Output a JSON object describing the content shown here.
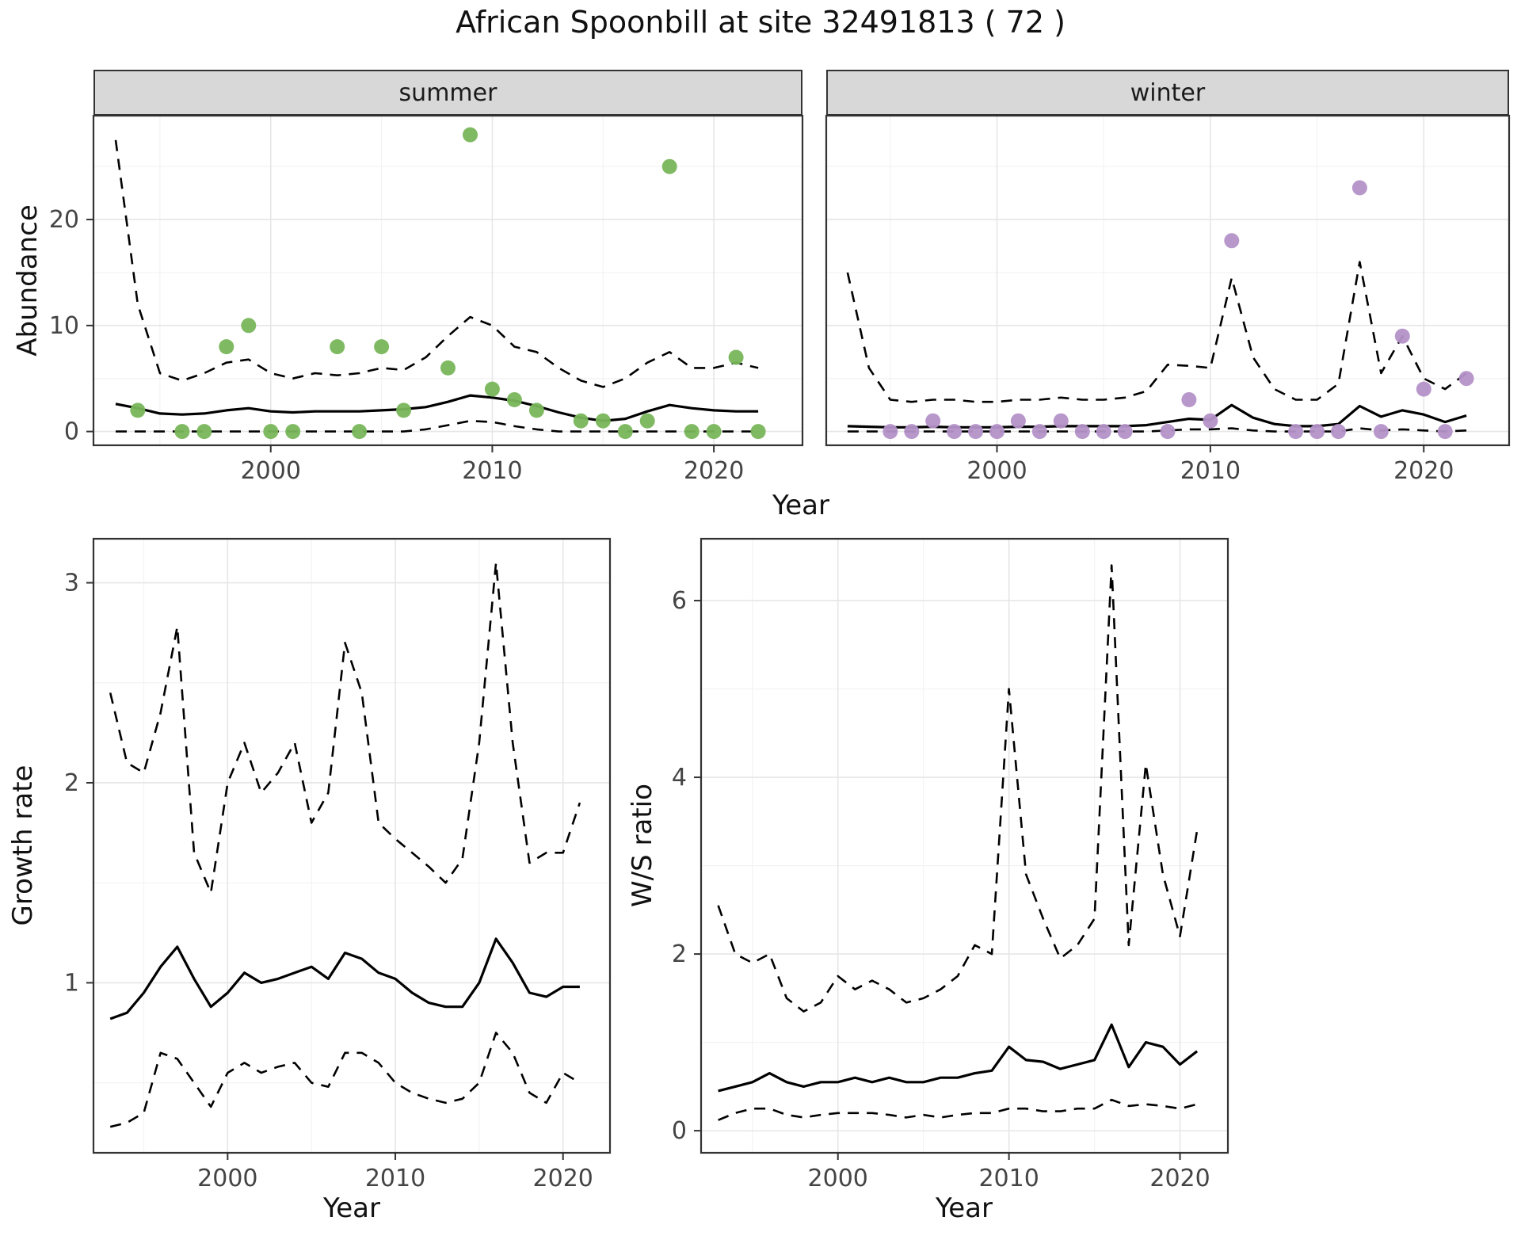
{
  "title": "African Spoonbill at site 32491813 ( 72 )",
  "facets": {
    "summer": "summer",
    "winter": "winter"
  },
  "axis_titles": {
    "abundance": "Abundance",
    "year": "Year",
    "growth": "Growth rate",
    "ws": "W/S ratio"
  },
  "colors": {
    "summer_point": "#78b65a",
    "winter_point": "#b492c8",
    "line": "#000000",
    "strip_bg": "#d8d8d8",
    "panel_border": "#333333",
    "grid_major": "#e6e6e6",
    "grid_minor": "#f3f3f3",
    "tick_text": "#444444",
    "title_text": "#111111"
  },
  "chart_data": [
    {
      "id": "abundance-summer",
      "type": "line",
      "name": "Abundance (summer facet)",
      "facet": "summer",
      "xlabel": "Year",
      "ylabel": "Abundance",
      "xlim": [
        1992,
        2024
      ],
      "ylim": [
        -1.3,
        29.8
      ],
      "xticks": [
        2000,
        2010,
        2020
      ],
      "yticks": [
        0,
        10,
        20
      ],
      "xminor": [
        1995,
        2005,
        2015
      ],
      "yminor": [
        5,
        15,
        25
      ],
      "show_ytick_labels": true,
      "series": [
        {
          "name": "median",
          "style": "solid",
          "x": [
            1993,
            1994,
            1995,
            1996,
            1997,
            1998,
            1999,
            2000,
            2001,
            2002,
            2003,
            2004,
            2005,
            2006,
            2007,
            2008,
            2009,
            2010,
            2011,
            2012,
            2013,
            2014,
            2015,
            2016,
            2017,
            2018,
            2019,
            2020,
            2021,
            2022
          ],
          "y": [
            2.6,
            2.2,
            1.7,
            1.6,
            1.7,
            2.0,
            2.2,
            1.9,
            1.8,
            1.9,
            1.9,
            1.9,
            2.0,
            2.1,
            2.3,
            2.8,
            3.4,
            3.2,
            2.9,
            2.4,
            1.8,
            1.3,
            1.0,
            1.2,
            1.9,
            2.5,
            2.2,
            2.0,
            1.9,
            1.9
          ]
        },
        {
          "name": "upper_ci",
          "style": "dashed",
          "x": [
            1993,
            1994,
            1995,
            1996,
            1997,
            1998,
            1999,
            2000,
            2001,
            2002,
            2003,
            2004,
            2005,
            2006,
            2007,
            2008,
            2009,
            2010,
            2011,
            2012,
            2013,
            2014,
            2015,
            2016,
            2017,
            2018,
            2019,
            2020,
            2021,
            2022
          ],
          "y": [
            27.5,
            12.0,
            5.5,
            4.8,
            5.5,
            6.5,
            6.8,
            5.5,
            5.0,
            5.5,
            5.3,
            5.5,
            6.0,
            5.8,
            7.0,
            9.0,
            10.8,
            10.0,
            8.0,
            7.5,
            6.0,
            4.8,
            4.2,
            5.0,
            6.5,
            7.5,
            6.0,
            6.0,
            6.5,
            6.0
          ]
        },
        {
          "name": "lower_ci",
          "style": "dashed",
          "x": [
            1993,
            1994,
            1995,
            1996,
            1997,
            1998,
            1999,
            2000,
            2001,
            2002,
            2003,
            2004,
            2005,
            2006,
            2007,
            2008,
            2009,
            2010,
            2011,
            2012,
            2013,
            2014,
            2015,
            2016,
            2017,
            2018,
            2019,
            2020,
            2021,
            2022
          ],
          "y": [
            0,
            0,
            0,
            0,
            0,
            0,
            0,
            0,
            0,
            0,
            0,
            0,
            0,
            0,
            0.2,
            0.6,
            1.0,
            0.9,
            0.5,
            0.2,
            0,
            0,
            0,
            0,
            0,
            0,
            0,
            0,
            0,
            0
          ]
        }
      ],
      "points": {
        "name": "observed_counts_summer",
        "color_key": "summer_point",
        "x": [
          1994,
          1996,
          1997,
          1998,
          1999,
          2000,
          2001,
          2003,
          2004,
          2005,
          2006,
          2008,
          2009,
          2010,
          2011,
          2012,
          2014,
          2015,
          2016,
          2017,
          2018,
          2019,
          2020,
          2021,
          2022
        ],
        "y": [
          2,
          0,
          0,
          8,
          10,
          0,
          0,
          8,
          0,
          8,
          2,
          6,
          28,
          4,
          3,
          2,
          1,
          1,
          0,
          1,
          25,
          0,
          0,
          7,
          0
        ]
      }
    },
    {
      "id": "abundance-winter",
      "type": "line",
      "name": "Abundance (winter facet)",
      "facet": "winter",
      "xlabel": "Year",
      "ylabel": "Abundance",
      "xlim": [
        1992,
        2024
      ],
      "ylim": [
        -1.3,
        29.8
      ],
      "xticks": [
        2000,
        2010,
        2020
      ],
      "yticks": [
        0,
        10,
        20
      ],
      "xminor": [
        1995,
        2005,
        2015
      ],
      "yminor": [
        5,
        15,
        25
      ],
      "show_ytick_labels": false,
      "series": [
        {
          "name": "median",
          "style": "solid",
          "x": [
            1993,
            1994,
            1995,
            1996,
            1997,
            1998,
            1999,
            2000,
            2001,
            2002,
            2003,
            2004,
            2005,
            2006,
            2007,
            2008,
            2009,
            2010,
            2011,
            2012,
            2013,
            2014,
            2015,
            2016,
            2017,
            2018,
            2019,
            2020,
            2021,
            2022
          ],
          "y": [
            0.5,
            0.45,
            0.4,
            0.4,
            0.45,
            0.4,
            0.4,
            0.4,
            0.45,
            0.45,
            0.5,
            0.5,
            0.5,
            0.5,
            0.6,
            0.9,
            1.2,
            1.1,
            2.5,
            1.3,
            0.7,
            0.5,
            0.5,
            0.7,
            2.4,
            1.4,
            2.0,
            1.6,
            0.9,
            1.5
          ]
        },
        {
          "name": "upper_ci",
          "style": "dashed",
          "x": [
            1993,
            1994,
            1995,
            1996,
            1997,
            1998,
            1999,
            2000,
            2001,
            2002,
            2003,
            2004,
            2005,
            2006,
            2007,
            2008,
            2009,
            2010,
            2011,
            2012,
            2013,
            2014,
            2015,
            2016,
            2017,
            2018,
            2019,
            2020,
            2021,
            2022
          ],
          "y": [
            15.0,
            6.0,
            3.0,
            2.8,
            3.0,
            3.0,
            2.8,
            2.8,
            3.0,
            3.0,
            3.2,
            3.0,
            3.0,
            3.2,
            3.8,
            6.3,
            6.2,
            6.0,
            14.5,
            7.0,
            4.0,
            3.0,
            3.0,
            4.5,
            16.0,
            5.5,
            9.0,
            5.0,
            4.0,
            5.5
          ]
        },
        {
          "name": "lower_ci",
          "style": "dashed",
          "x": [
            1993,
            1994,
            1995,
            1996,
            1997,
            1998,
            1999,
            2000,
            2001,
            2002,
            2003,
            2004,
            2005,
            2006,
            2007,
            2008,
            2009,
            2010,
            2011,
            2012,
            2013,
            2014,
            2015,
            2016,
            2017,
            2018,
            2019,
            2020,
            2021,
            2022
          ],
          "y": [
            0,
            0,
            0,
            0,
            0,
            0,
            0,
            0,
            0,
            0,
            0,
            0,
            0,
            0,
            0,
            0.1,
            0.2,
            0.2,
            0.3,
            0.1,
            0,
            0,
            0,
            0,
            0.3,
            0.1,
            0.2,
            0.1,
            0,
            0.1
          ]
        }
      ],
      "points": {
        "name": "observed_counts_winter",
        "color_key": "winter_point",
        "x": [
          1995,
          1996,
          1997,
          1998,
          1999,
          2000,
          2001,
          2002,
          2003,
          2004,
          2005,
          2006,
          2008,
          2009,
          2010,
          2011,
          2014,
          2015,
          2016,
          2017,
          2018,
          2019,
          2020,
          2021,
          2022
        ],
        "y": [
          0,
          0,
          1,
          0,
          0,
          0,
          1,
          0,
          1,
          0,
          0,
          0,
          0,
          3,
          1,
          18,
          0,
          0,
          0,
          23,
          0,
          9,
          4,
          0,
          5
        ]
      }
    },
    {
      "id": "growth-rate",
      "type": "line",
      "name": "Growth rate",
      "xlabel": "Year",
      "ylabel": "Growth rate",
      "xlim": [
        1992,
        2022.8
      ],
      "ylim": [
        0.15,
        3.22
      ],
      "xticks": [
        2000,
        2010,
        2020
      ],
      "yticks": [
        1,
        2,
        3
      ],
      "xminor": [
        1995,
        2005,
        2015
      ],
      "yminor": [
        0.5,
        1.5,
        2.5
      ],
      "show_ytick_labels": true,
      "series": [
        {
          "name": "median",
          "style": "solid",
          "x": [
            1993,
            1994,
            1995,
            1996,
            1997,
            1998,
            1999,
            2000,
            2001,
            2002,
            2003,
            2004,
            2005,
            2006,
            2007,
            2008,
            2009,
            2010,
            2011,
            2012,
            2013,
            2014,
            2015,
            2016,
            2017,
            2018,
            2019,
            2020,
            2021
          ],
          "y": [
            0.82,
            0.85,
            0.95,
            1.08,
            1.18,
            1.02,
            0.88,
            0.95,
            1.05,
            1.0,
            1.02,
            1.05,
            1.08,
            1.02,
            1.15,
            1.12,
            1.05,
            1.02,
            0.95,
            0.9,
            0.88,
            0.88,
            1.0,
            1.22,
            1.1,
            0.95,
            0.93,
            0.98,
            0.98
          ]
        },
        {
          "name": "upper_ci",
          "style": "dashed",
          "x": [
            1993,
            1994,
            1995,
            1996,
            1997,
            1998,
            1999,
            2000,
            2001,
            2002,
            2003,
            2004,
            2005,
            2006,
            2007,
            2008,
            2009,
            2010,
            2011,
            2012,
            2013,
            2014,
            2015,
            2016,
            2017,
            2018,
            2019,
            2020,
            2021
          ],
          "y": [
            2.45,
            2.1,
            2.05,
            2.35,
            2.78,
            1.65,
            1.45,
            2.0,
            2.2,
            1.95,
            2.05,
            2.2,
            1.8,
            1.95,
            2.7,
            2.45,
            1.8,
            1.72,
            1.65,
            1.58,
            1.5,
            1.62,
            2.2,
            3.1,
            2.2,
            1.6,
            1.65,
            1.65,
            1.9
          ]
        },
        {
          "name": "lower_ci",
          "style": "dashed",
          "x": [
            1993,
            1994,
            1995,
            1996,
            1997,
            1998,
            1999,
            2000,
            2001,
            2002,
            2003,
            2004,
            2005,
            2006,
            2007,
            2008,
            2009,
            2010,
            2011,
            2012,
            2013,
            2014,
            2015,
            2016,
            2017,
            2018,
            2019,
            2020,
            2021
          ],
          "y": [
            0.28,
            0.3,
            0.35,
            0.65,
            0.62,
            0.5,
            0.38,
            0.55,
            0.6,
            0.55,
            0.58,
            0.6,
            0.5,
            0.48,
            0.65,
            0.65,
            0.6,
            0.5,
            0.45,
            0.42,
            0.4,
            0.42,
            0.5,
            0.75,
            0.65,
            0.45,
            0.4,
            0.55,
            0.5
          ]
        }
      ]
    },
    {
      "id": "ws-ratio",
      "type": "line",
      "name": "W/S ratio",
      "xlabel": "Year",
      "ylabel": "W/S ratio",
      "xlim": [
        1992,
        2022.8
      ],
      "ylim": [
        -0.25,
        6.7
      ],
      "xticks": [
        2000,
        2010,
        2020
      ],
      "yticks": [
        0,
        2,
        4,
        6
      ],
      "xminor": [
        1995,
        2005,
        2015
      ],
      "yminor": [
        1,
        3,
        5
      ],
      "show_ytick_labels": true,
      "series": [
        {
          "name": "median",
          "style": "solid",
          "x": [
            1993,
            1994,
            1995,
            1996,
            1997,
            1998,
            1999,
            2000,
            2001,
            2002,
            2003,
            2004,
            2005,
            2006,
            2007,
            2008,
            2009,
            2010,
            2011,
            2012,
            2013,
            2014,
            2015,
            2016,
            2017,
            2018,
            2019,
            2020,
            2021
          ],
          "y": [
            0.45,
            0.5,
            0.55,
            0.65,
            0.55,
            0.5,
            0.55,
            0.55,
            0.6,
            0.55,
            0.6,
            0.55,
            0.55,
            0.6,
            0.6,
            0.65,
            0.68,
            0.95,
            0.8,
            0.78,
            0.7,
            0.75,
            0.8,
            1.2,
            0.72,
            1.0,
            0.95,
            0.75,
            0.9
          ]
        },
        {
          "name": "upper_ci",
          "style": "dashed",
          "x": [
            1993,
            1994,
            1995,
            1996,
            1997,
            1998,
            1999,
            2000,
            2001,
            2002,
            2003,
            2004,
            2005,
            2006,
            2007,
            2008,
            2009,
            2010,
            2011,
            2012,
            2013,
            2014,
            2015,
            2016,
            2017,
            2018,
            2019,
            2020,
            2021
          ],
          "y": [
            2.55,
            2.0,
            1.9,
            2.0,
            1.5,
            1.35,
            1.45,
            1.75,
            1.6,
            1.7,
            1.6,
            1.45,
            1.5,
            1.6,
            1.75,
            2.1,
            2.0,
            5.0,
            2.9,
            2.4,
            1.95,
            2.1,
            2.4,
            6.4,
            2.1,
            4.15,
            2.9,
            2.2,
            3.4
          ]
        },
        {
          "name": "lower_ci",
          "style": "dashed",
          "x": [
            1993,
            1994,
            1995,
            1996,
            1997,
            1998,
            1999,
            2000,
            2001,
            2002,
            2003,
            2004,
            2005,
            2006,
            2007,
            2008,
            2009,
            2010,
            2011,
            2012,
            2013,
            2014,
            2015,
            2016,
            2017,
            2018,
            2019,
            2020,
            2021
          ],
          "y": [
            0.12,
            0.2,
            0.25,
            0.25,
            0.18,
            0.15,
            0.18,
            0.2,
            0.2,
            0.2,
            0.18,
            0.15,
            0.18,
            0.15,
            0.18,
            0.2,
            0.2,
            0.25,
            0.25,
            0.22,
            0.22,
            0.25,
            0.25,
            0.35,
            0.28,
            0.3,
            0.28,
            0.25,
            0.3
          ]
        }
      ]
    }
  ]
}
